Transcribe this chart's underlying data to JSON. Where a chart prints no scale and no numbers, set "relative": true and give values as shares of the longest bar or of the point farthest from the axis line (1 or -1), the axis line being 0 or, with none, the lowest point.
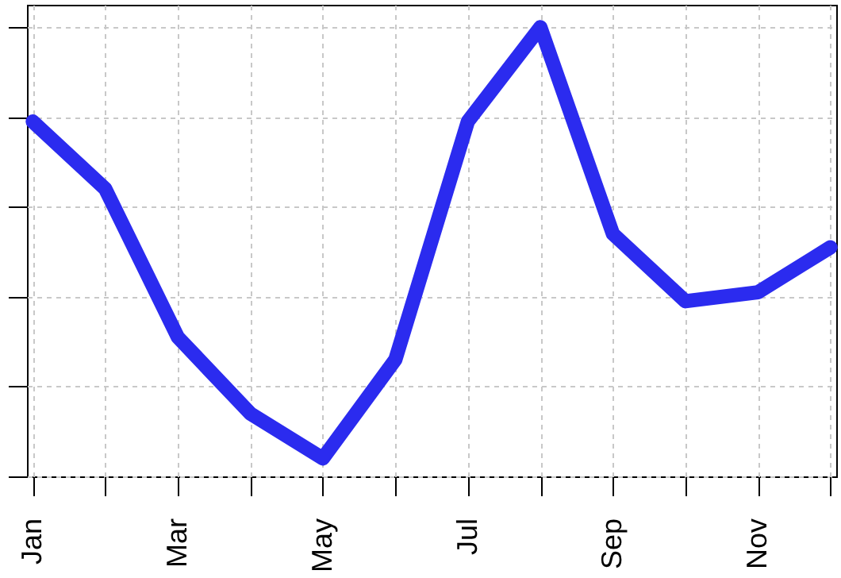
{
  "chart_data": {
    "type": "line",
    "relative": true,
    "categories": [
      "Jan",
      null,
      "Mar",
      null,
      "May",
      null,
      "Jul",
      null,
      "Sep",
      null,
      "Nov",
      null
    ],
    "series": [
      {
        "color": "#2b2bef",
        "values": [
          0.79,
          0.64,
          0.31,
          0.14,
          0.04,
          0.26,
          0.79,
          1,
          0.54,
          0.39,
          0.41,
          0.51
        ]
      }
    ],
    "grid": true,
    "marker": "none",
    "line_style": "solid"
  }
}
